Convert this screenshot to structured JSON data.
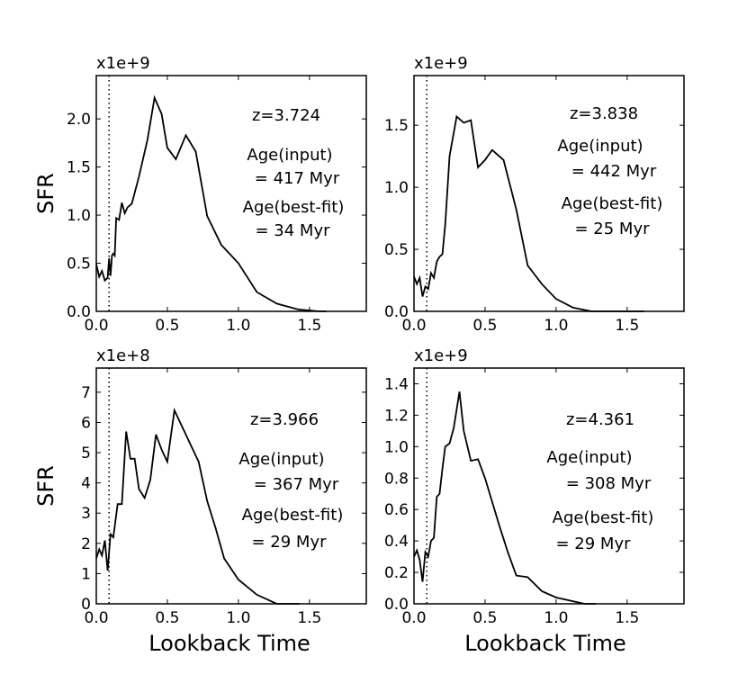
{
  "figure": {
    "xlabel": "Lookback Time",
    "ylabel": "SFR"
  },
  "chart_data": [
    {
      "type": "line",
      "offset_label": "x1e+9",
      "xlim": [
        0,
        1.9
      ],
      "ylim": [
        0,
        2.45
      ],
      "x_ticks": [
        0.0,
        0.5,
        1.0,
        1.5
      ],
      "x_tick_labels": [
        "0.0",
        "0.5",
        "1.0",
        "1.5"
      ],
      "y_ticks": [
        0.0,
        0.5,
        1.0,
        1.5,
        2.0
      ],
      "y_tick_labels": [
        "0.0",
        "0.5",
        "1.0",
        "1.5",
        "2.0"
      ],
      "vline_x": 0.09,
      "annotations": [
        "z=3.724",
        "Age(input)",
        "= 417 Myr",
        "Age(best-fit)",
        "= 34 Myr"
      ],
      "x": [
        0.0,
        0.02,
        0.04,
        0.06,
        0.08,
        0.09,
        0.1,
        0.11,
        0.12,
        0.13,
        0.14,
        0.16,
        0.18,
        0.2,
        0.22,
        0.25,
        0.3,
        0.36,
        0.41,
        0.46,
        0.5,
        0.56,
        0.63,
        0.7,
        0.78,
        0.88,
        1.0,
        1.13,
        1.27,
        1.42,
        1.57,
        1.62
      ],
      "y": [
        0.49,
        0.36,
        0.42,
        0.32,
        0.35,
        0.55,
        0.37,
        0.58,
        0.6,
        0.58,
        0.97,
        0.95,
        1.13,
        1.02,
        1.08,
        1.12,
        1.4,
        1.78,
        2.22,
        2.05,
        1.7,
        1.58,
        1.83,
        1.66,
        0.99,
        0.69,
        0.5,
        0.2,
        0.08,
        0.02,
        0.0,
        0.0
      ]
    },
    {
      "type": "line",
      "offset_label": "x1e+9",
      "xlim": [
        0,
        1.9
      ],
      "ylim": [
        0,
        1.9
      ],
      "x_ticks": [
        0.0,
        0.5,
        1.0,
        1.5
      ],
      "x_tick_labels": [
        "0.0",
        "0.5",
        "1.0",
        "1.5"
      ],
      "y_ticks": [
        0.0,
        0.5,
        1.0,
        1.5
      ],
      "y_tick_labels": [
        "0.0",
        "0.5",
        "1.0",
        "1.5"
      ],
      "vline_x": 0.09,
      "annotations": [
        "z=3.838",
        "Age(input)",
        "= 442 Myr",
        "Age(best-fit)",
        "= 25 Myr"
      ],
      "x": [
        0.0,
        0.02,
        0.04,
        0.06,
        0.08,
        0.1,
        0.12,
        0.14,
        0.16,
        0.18,
        0.2,
        0.22,
        0.25,
        0.3,
        0.35,
        0.4,
        0.45,
        0.5,
        0.55,
        0.63,
        0.72,
        0.8,
        0.9,
        1.0,
        1.12,
        1.25,
        1.4,
        1.55,
        1.62
      ],
      "y": [
        0.28,
        0.22,
        0.27,
        0.12,
        0.2,
        0.18,
        0.31,
        0.27,
        0.4,
        0.44,
        0.46,
        0.7,
        1.25,
        1.57,
        1.52,
        1.54,
        1.16,
        1.22,
        1.3,
        1.22,
        0.82,
        0.37,
        0.22,
        0.1,
        0.03,
        0.0,
        0.0,
        0.0,
        0.0
      ]
    },
    {
      "type": "line",
      "offset_label": "x1e+8",
      "xlim": [
        0,
        1.9
      ],
      "ylim": [
        0,
        7.8
      ],
      "x_ticks": [
        0.0,
        0.5,
        1.0,
        1.5
      ],
      "x_tick_labels": [
        "0.0",
        "0.5",
        "1.0",
        "1.5"
      ],
      "y_ticks": [
        0,
        1,
        2,
        3,
        4,
        5,
        6,
        7
      ],
      "y_tick_labels": [
        "0",
        "1",
        "2",
        "3",
        "4",
        "5",
        "6",
        "7"
      ],
      "vline_x": 0.09,
      "annotations": [
        "z=3.966",
        "Age(input)",
        "= 367 Myr",
        "Age(best-fit)",
        "= 29 Myr"
      ],
      "x": [
        0.0,
        0.02,
        0.04,
        0.06,
        0.08,
        0.1,
        0.12,
        0.15,
        0.18,
        0.21,
        0.24,
        0.27,
        0.3,
        0.34,
        0.38,
        0.42,
        0.46,
        0.5,
        0.55,
        0.6,
        0.66,
        0.72,
        0.78,
        0.84,
        0.9,
        1.0,
        1.13,
        1.27,
        1.43
      ],
      "y": [
        1.5,
        1.8,
        1.6,
        2.1,
        1.1,
        2.3,
        2.2,
        3.3,
        3.3,
        5.7,
        4.8,
        4.8,
        3.8,
        3.5,
        4.1,
        5.6,
        5.1,
        4.7,
        6.4,
        5.9,
        5.3,
        4.7,
        3.4,
        2.5,
        1.5,
        0.8,
        0.3,
        0.0,
        0.0
      ]
    },
    {
      "type": "line",
      "offset_label": "x1e+9",
      "xlim": [
        0,
        1.9
      ],
      "ylim": [
        0,
        1.5
      ],
      "x_ticks": [
        0.0,
        0.5,
        1.0,
        1.5
      ],
      "x_tick_labels": [
        "0.0",
        "0.5",
        "1.0",
        "1.5"
      ],
      "y_ticks": [
        0.0,
        0.2,
        0.4,
        0.6,
        0.8,
        1.0,
        1.2,
        1.4
      ],
      "y_tick_labels": [
        "0.0",
        "0.2",
        "0.4",
        "0.6",
        "0.8",
        "1.0",
        "1.2",
        "1.4"
      ],
      "vline_x": 0.09,
      "annotations": [
        "z=4.361",
        "Age(input)",
        "= 308 Myr",
        "Age(best-fit)",
        "= 29 Myr"
      ],
      "x": [
        0.0,
        0.02,
        0.04,
        0.06,
        0.08,
        0.1,
        0.12,
        0.14,
        0.16,
        0.18,
        0.2,
        0.22,
        0.25,
        0.28,
        0.32,
        0.35,
        0.4,
        0.45,
        0.5,
        0.55,
        0.6,
        0.66,
        0.72,
        0.8,
        0.9,
        1.0,
        1.1,
        1.2,
        1.28
      ],
      "y": [
        0.3,
        0.34,
        0.28,
        0.14,
        0.33,
        0.3,
        0.4,
        0.42,
        0.68,
        0.7,
        0.86,
        1.0,
        1.02,
        1.12,
        1.35,
        1.1,
        0.91,
        0.92,
        0.8,
        0.65,
        0.5,
        0.33,
        0.18,
        0.17,
        0.08,
        0.04,
        0.02,
        0.0,
        0.0
      ]
    }
  ]
}
